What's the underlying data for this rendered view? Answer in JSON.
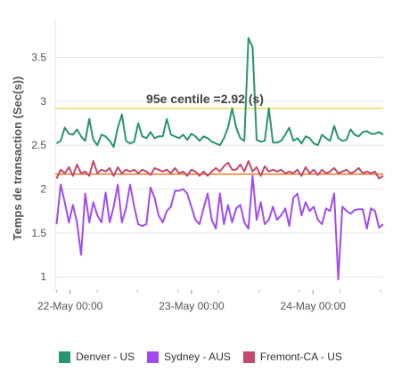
{
  "chart_data": {
    "type": "line",
    "ylabel": "Temps de transaction (Sec(s))",
    "ylim": [
      0.85,
      3.85
    ],
    "yticks": [
      "1",
      "1.5",
      "2",
      "2.5",
      "3",
      "3.5"
    ],
    "xticks": [
      "22-May 00:00",
      "23-May 00:00",
      "24-May 00:00"
    ],
    "xtick_positions": [
      0.1,
      1.0,
      1.9
    ],
    "xlim": [
      -0.01,
      2.42
    ],
    "grid": true,
    "legend_position": "bottom",
    "annotation": {
      "label": "95e centile =2.92 (s)",
      "value": 2.92,
      "color": "#e8e06a"
    },
    "reference_line": {
      "value": 2.17,
      "color": "#e8772e"
    },
    "series": [
      {
        "name": "Denver - US",
        "color": "#2a9470",
        "values": [
          2.52,
          2.55,
          2.7,
          2.63,
          2.62,
          2.68,
          2.6,
          2.55,
          2.8,
          2.56,
          2.5,
          2.62,
          2.6,
          2.55,
          2.48,
          2.7,
          2.85,
          2.55,
          2.52,
          2.54,
          2.75,
          2.6,
          2.58,
          2.65,
          2.58,
          2.6,
          2.6,
          2.8,
          2.62,
          2.6,
          2.58,
          2.62,
          2.56,
          2.63,
          2.6,
          2.55,
          2.6,
          2.58,
          2.54,
          2.52,
          2.5,
          2.58,
          2.7,
          2.92,
          2.7,
          2.58,
          2.55,
          3.72,
          3.62,
          2.56,
          2.54,
          2.55,
          2.92,
          2.53,
          2.53,
          2.55,
          2.62,
          2.7,
          2.55,
          2.58,
          2.52,
          2.6,
          2.58,
          2.52,
          2.5,
          2.62,
          2.58,
          2.55,
          2.72,
          2.58,
          2.55,
          2.56,
          2.68,
          2.62,
          2.6,
          2.65,
          2.66,
          2.63,
          2.63,
          2.65,
          2.62
        ]
      },
      {
        "name": "Sydney - AUS",
        "color": "#a04cf0",
        "values": [
          1.6,
          2.05,
          1.85,
          1.62,
          1.82,
          1.62,
          1.25,
          1.95,
          1.62,
          1.85,
          1.7,
          1.62,
          1.96,
          1.62,
          1.8,
          2.05,
          1.62,
          1.78,
          2.05,
          1.8,
          1.6,
          1.58,
          1.6,
          2.02,
          1.9,
          1.7,
          1.62,
          1.75,
          1.8,
          1.98,
          1.98,
          2.0,
          1.95,
          1.8,
          1.65,
          1.6,
          1.78,
          1.95,
          1.65,
          1.55,
          1.95,
          1.6,
          1.82,
          1.62,
          1.78,
          1.82,
          1.62,
          1.55,
          2.15,
          1.65,
          1.85,
          1.6,
          1.65,
          1.8,
          1.65,
          1.7,
          1.78,
          1.58,
          1.9,
          1.95,
          1.7,
          1.85,
          1.75,
          1.8,
          1.65,
          1.6,
          1.78,
          1.75,
          1.95,
          0.97,
          1.8,
          1.75,
          1.72,
          1.76,
          1.77,
          1.77,
          1.55,
          1.78,
          1.75,
          1.56,
          1.6
        ]
      },
      {
        "name": "Fremont-CA - US",
        "color": "#c24a6a",
        "values": [
          2.12,
          2.22,
          2.18,
          2.25,
          2.15,
          2.28,
          2.18,
          2.2,
          2.15,
          2.32,
          2.18,
          2.22,
          2.2,
          2.24,
          2.15,
          2.25,
          2.18,
          2.22,
          2.2,
          2.22,
          2.18,
          2.22,
          2.2,
          2.16,
          2.24,
          2.22,
          2.2,
          2.22,
          2.18,
          2.24,
          2.18,
          2.2,
          2.15,
          2.22,
          2.2,
          2.15,
          2.2,
          2.15,
          2.2,
          2.24,
          2.2,
          2.26,
          2.3,
          2.22,
          2.22,
          2.28,
          2.2,
          2.32,
          2.2,
          2.25,
          2.15,
          2.26,
          2.2,
          2.22,
          2.2,
          2.22,
          2.18,
          2.2,
          2.18,
          2.22,
          2.15,
          2.25,
          2.18,
          2.22,
          2.16,
          2.22,
          2.18,
          2.2,
          2.24,
          2.18,
          2.2,
          2.22,
          2.18,
          2.2,
          2.24,
          2.18,
          2.2,
          2.18,
          2.2,
          2.12,
          2.15
        ]
      }
    ]
  }
}
